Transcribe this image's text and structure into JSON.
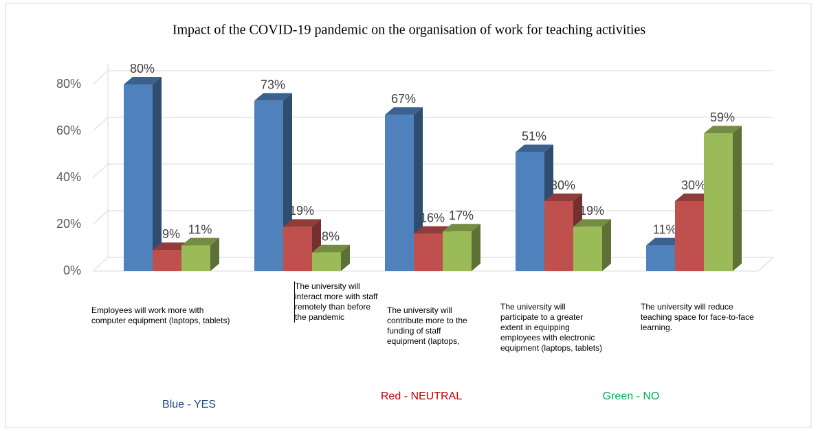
{
  "chart_data": {
    "type": "bar3d",
    "title": "Impact of the COVID-19 pandemic on the organisation of work for teaching activities",
    "categories": [
      "Employees will work more with computer equipment (laptops, tablets)",
      "The university will interact more with staff remotely than before the pandemic",
      "The university will contribute more to the funding of staff equipment (laptops, tablets).",
      "The university will participate to a greater extent in equipping employees with electronic equipment (laptops, tablets)",
      "The university will reduce teaching space for face-to-face learning."
    ],
    "series": [
      {
        "name": "Blue - YES",
        "color": "#4f81bd",
        "legend_color": "#1f497d",
        "values": [
          80,
          73,
          67,
          51,
          11
        ],
        "value_labels": [
          "80%",
          "73%",
          "67%",
          "51%",
          "11%"
        ]
      },
      {
        "name": "Red - NEUTRAL",
        "color": "#c0504d",
        "legend_color": "#c00000",
        "values": [
          9,
          19,
          16,
          30,
          30
        ],
        "value_labels": [
          "9%",
          "19%",
          "16%",
          "30%",
          "30%"
        ]
      },
      {
        "name": "Green - NO",
        "color": "#9bbb59",
        "legend_color": "#00b050",
        "values": [
          11,
          8,
          17,
          19,
          59
        ],
        "value_labels": [
          "11%",
          "8%",
          "17%",
          "19%",
          "59%"
        ]
      }
    ],
    "ylim": [
      0,
      80
    ],
    "yticks": [
      {
        "value": 0,
        "label": "0%"
      },
      {
        "value": 20,
        "label": "20%"
      },
      {
        "value": 40,
        "label": "40%"
      },
      {
        "value": 60,
        "label": "60%"
      },
      {
        "value": 80,
        "label": "80%"
      }
    ],
    "grid": true
  }
}
